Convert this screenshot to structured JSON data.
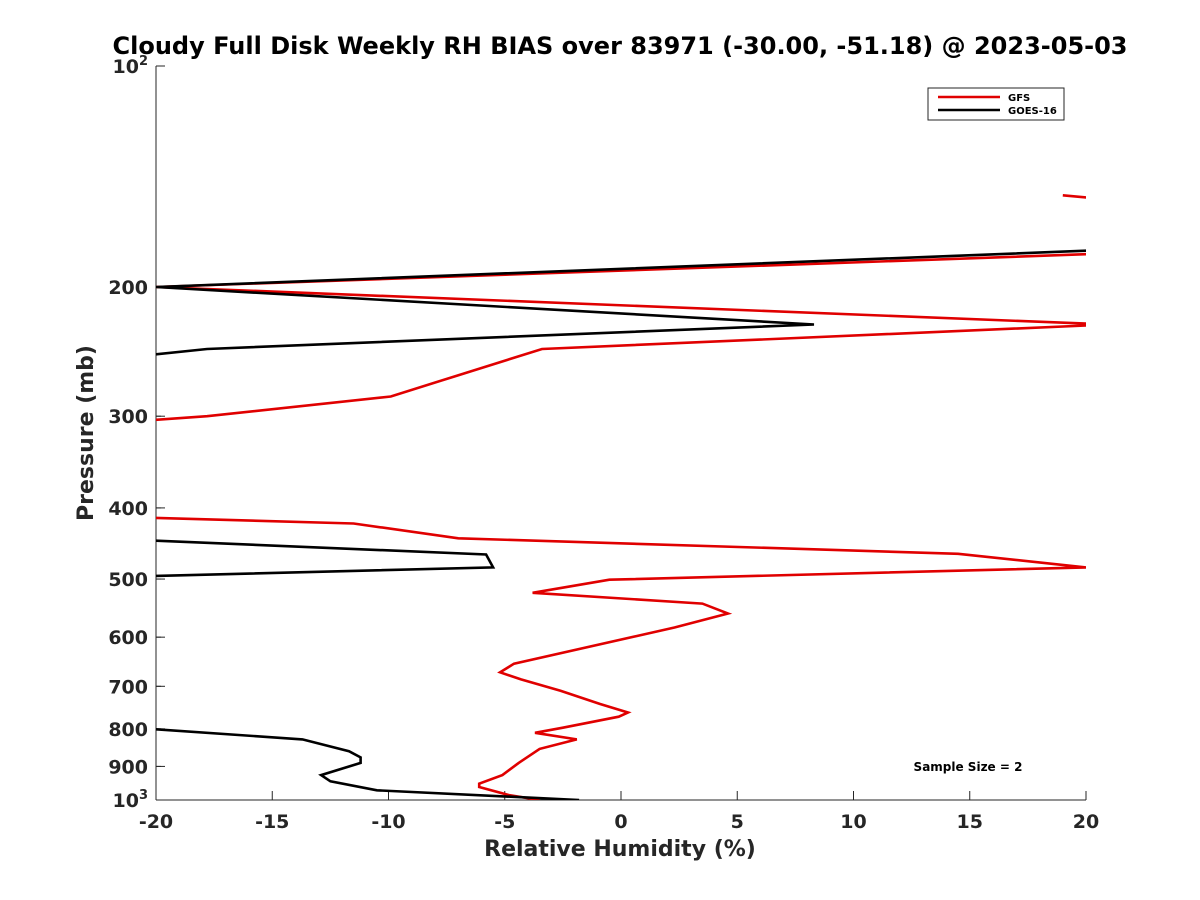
{
  "chart_data": {
    "type": "line",
    "title": "Cloudy Full Disk Weekly RH BIAS over 83971 (-30.00, -51.18) @ 2023-05-03",
    "xlabel": "Relative Humidity (%)",
    "ylabel": "Pressure (mb)",
    "xlim": [
      -20,
      20
    ],
    "ylim": [
      100,
      1000
    ],
    "yscale": "log",
    "y_reversed": true,
    "grid": false,
    "legend_position": "top-right",
    "x_ticks": [
      "-20",
      "-15",
      "-10",
      "-5",
      "0",
      "5",
      "10",
      "15",
      "20"
    ],
    "y_ticks": [
      {
        "value": 100,
        "base": "10",
        "exp": "2"
      },
      {
        "value": 200,
        "label": "200"
      },
      {
        "value": 300,
        "label": "300"
      },
      {
        "value": 400,
        "label": "400"
      },
      {
        "value": 500,
        "label": "500"
      },
      {
        "value": 600,
        "label": "600"
      },
      {
        "value": 700,
        "label": "700"
      },
      {
        "value": 800,
        "label": "800"
      },
      {
        "value": 900,
        "label": "900"
      },
      {
        "value": 1000,
        "base": "10",
        "exp": "3"
      }
    ],
    "annotation": "Sample Size = 2",
    "series": [
      {
        "name": "GFS",
        "color": "#e00000",
        "segments": [
          [
            [
              19,
              150
            ],
            [
              21,
              152
            ]
          ],
          [
            [
              21,
              180
            ],
            [
              -20,
              200
            ],
            [
              21,
              225
            ],
            [
              -3.4,
              243
            ],
            [
              -7.2,
              265
            ],
            [
              -9.9,
              282
            ],
            [
              -17.8,
              300
            ],
            [
              -21,
              305
            ]
          ],
          [
            [
              -21,
              412
            ],
            [
              -11.5,
              420
            ],
            [
              -7,
              440
            ],
            [
              14.5,
              462
            ],
            [
              20,
              482
            ],
            [
              -0.5,
              501
            ],
            [
              -3.8,
              522
            ],
            [
              3.5,
              540
            ],
            [
              4.6,
              557
            ],
            [
              2.3,
              582
            ],
            [
              -4.6,
              652
            ],
            [
              -5.2,
              670
            ],
            [
              -4.3,
              685
            ],
            [
              -2.6,
              710
            ],
            [
              -0.9,
              740
            ],
            [
              0.3,
              760
            ],
            [
              -0.1,
              770
            ],
            [
              -2.5,
              797
            ],
            [
              -3.7,
              810
            ],
            [
              -1.9,
              827
            ],
            [
              -3.5,
              852
            ],
            [
              -4.4,
              890
            ],
            [
              -5.1,
              925
            ],
            [
              -6.1,
              950
            ],
            [
              -6.1,
              960
            ],
            [
              -4.8,
              985
            ],
            [
              -3.5,
              1000
            ]
          ]
        ]
      },
      {
        "name": "GOES-16",
        "color": "#000000",
        "segments": [
          [
            [
              21,
              178
            ],
            [
              -20,
              200
            ],
            [
              8.3,
              225
            ],
            [
              -17.8,
              243
            ],
            [
              -21,
              249
            ]
          ],
          [
            [
              -21,
              442
            ],
            [
              -5.8,
              463
            ],
            [
              -5.5,
              482
            ],
            [
              -21,
              496
            ]
          ],
          [
            [
              -21,
              797
            ],
            [
              -13.7,
              827
            ],
            [
              -11.7,
              858
            ],
            [
              -11.2,
              875
            ],
            [
              -11.2,
              890
            ],
            [
              -12.9,
              925
            ],
            [
              -12.5,
              943
            ],
            [
              -10.5,
              970
            ],
            [
              -1.8,
              1000
            ]
          ]
        ]
      }
    ]
  },
  "legend": {
    "items": [
      {
        "label": "GFS",
        "color": "#e00000"
      },
      {
        "label": "GOES-16",
        "color": "#000000"
      }
    ]
  }
}
